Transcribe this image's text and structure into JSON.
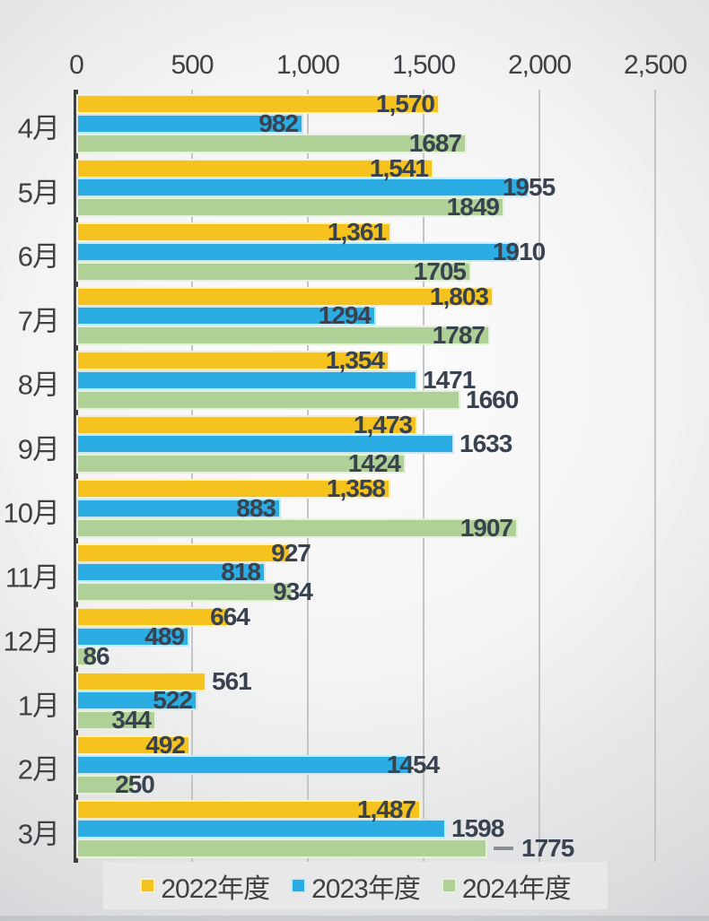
{
  "chart_data": {
    "type": "bar",
    "orientation": "horizontal",
    "title": "",
    "xlabel": "",
    "ylabel": "",
    "categories": [
      "4月",
      "5月",
      "6月",
      "7月",
      "8月",
      "9月",
      "10月",
      "11月",
      "12月",
      "1月",
      "2月",
      "3月"
    ],
    "series": [
      {
        "name": "2022年度",
        "color": "#F5C21E",
        "edge_color": "#FCF0C8",
        "values": [
          1570,
          1541,
          1361,
          1803,
          1354,
          1473,
          1358,
          927,
          664,
          561,
          492,
          1487
        ],
        "labels": [
          "1,570",
          "1,541",
          "1,361",
          "1,803",
          "1,354",
          "1,473",
          "1,358",
          "927",
          "664",
          "561",
          "492",
          "1,487"
        ],
        "label_pos": [
          "in",
          "in",
          "in",
          "in",
          "in",
          "in",
          "in",
          "mid",
          "mid",
          "out",
          "in",
          "in"
        ]
      },
      {
        "name": "2023年度",
        "color": "#2BACE2",
        "edge_color": "#C8E9F9",
        "values": [
          982,
          1955,
          1910,
          1294,
          1471,
          1633,
          883,
          818,
          489,
          522,
          1454,
          1598
        ],
        "labels": [
          "982",
          "1955",
          "1910",
          "1294",
          "1471",
          "1633",
          "883",
          "818",
          "489",
          "522",
          "1454",
          "1598"
        ],
        "label_pos": [
          "in",
          "mid",
          "mid",
          "in",
          "out",
          "out",
          "in",
          "in",
          "in",
          "in",
          "mid",
          "out"
        ]
      },
      {
        "name": "2024年度",
        "color": "#AFD096",
        "edge_color": "#E5F1DB",
        "values": [
          1687,
          1849,
          1705,
          1787,
          1660,
          1424,
          1907,
          934,
          86,
          344,
          250,
          1775
        ],
        "labels": [
          "1687",
          "1849",
          "1705",
          "1787",
          "1660",
          "1424",
          "1907",
          "934",
          "86",
          "344",
          "250",
          "1775"
        ],
        "label_pos": [
          "in",
          "in",
          "in",
          "in",
          "out",
          "in",
          "in",
          "mid",
          "mid",
          "in",
          "mid",
          "far"
        ]
      }
    ],
    "xlim": [
      0,
      2500
    ],
    "x_ticks": [
      0,
      500,
      1000,
      1500,
      2000,
      2500
    ],
    "x_tick_labels": [
      "0",
      "500",
      "1,000",
      "1,500",
      "2,000",
      "2,500"
    ],
    "grid": true,
    "legend_position": "bottom",
    "colors": {
      "tick_text": "#3F4144",
      "value_label_text": "#39424F",
      "axis_line": "#3D3F41",
      "gridline": "#C3C4C5",
      "leader_line": "#8A8F94"
    }
  }
}
